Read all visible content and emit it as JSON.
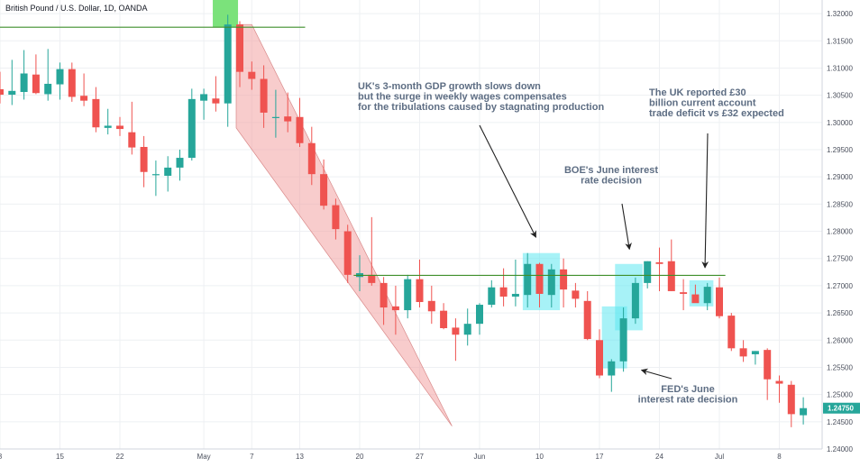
{
  "header": {
    "title": "British Pound / U.S. Dollar, 1D, OANDA"
  },
  "colors": {
    "up": "#26a69a",
    "down": "#ef5350",
    "grid": "#eef0f3",
    "support_line": "#3f8f2b",
    "channel_fill": "#f2a3a3",
    "highlight": "#5ee7f0",
    "top_marker": "#7be27b",
    "arrow": "#222222",
    "annotation_text": "#5d6d83",
    "price_label_bg": "#26a69a"
  },
  "chart_data": {
    "type": "candlestick",
    "title": "British Pound / U.S. Dollar, 1D, OANDA",
    "ylim": [
      1.24,
      1.3225
    ],
    "grid": true,
    "y_ticks": [
      "1.32000",
      "1.31500",
      "1.31000",
      "1.30500",
      "1.30000",
      "1.29500",
      "1.29000",
      "1.28500",
      "1.28000",
      "1.27500",
      "1.27000",
      "1.26500",
      "1.26000",
      "1.25500",
      "1.25000",
      "1.24500",
      "1.24000"
    ],
    "x_ticks": [
      {
        "label": "8",
        "index": 0
      },
      {
        "label": "15",
        "index": 5
      },
      {
        "label": "22",
        "index": 10
      },
      {
        "label": "May",
        "index": 17
      },
      {
        "label": "7",
        "index": 21
      },
      {
        "label": "13",
        "index": 25
      },
      {
        "label": "20",
        "index": 30
      },
      {
        "label": "27",
        "index": 35
      },
      {
        "label": "Jun",
        "index": 40
      },
      {
        "label": "10",
        "index": 45
      },
      {
        "label": "17",
        "index": 50
      },
      {
        "label": "24",
        "index": 55
      },
      {
        "label": "Jul",
        "index": 60
      },
      {
        "label": "8",
        "index": 65
      }
    ],
    "candles": [
      {
        "o": 1.3061,
        "h": 1.3093,
        "l": 1.3035,
        "c": 1.3051
      },
      {
        "o": 1.3051,
        "h": 1.3115,
        "l": 1.3032,
        "c": 1.3058
      },
      {
        "o": 1.3056,
        "h": 1.3133,
        "l": 1.3042,
        "c": 1.309
      },
      {
        "o": 1.3088,
        "h": 1.3125,
        "l": 1.3052,
        "c": 1.3054
      },
      {
        "o": 1.3052,
        "h": 1.3135,
        "l": 1.304,
        "c": 1.3071
      },
      {
        "o": 1.307,
        "h": 1.311,
        "l": 1.3042,
        "c": 1.3098
      },
      {
        "o": 1.3098,
        "h": 1.311,
        "l": 1.3038,
        "c": 1.3047
      },
      {
        "o": 1.3049,
        "h": 1.309,
        "l": 1.303,
        "c": 1.304
      },
      {
        "o": 1.3043,
        "h": 1.3065,
        "l": 1.2982,
        "c": 1.2991
      },
      {
        "o": 1.299,
        "h": 1.3025,
        "l": 1.2978,
        "c": 1.2994
      },
      {
        "o": 1.2994,
        "h": 1.301,
        "l": 1.2975,
        "c": 1.2988
      },
      {
        "o": 1.2982,
        "h": 1.3038,
        "l": 1.2941,
        "c": 1.2954
      },
      {
        "o": 1.2955,
        "h": 1.2975,
        "l": 1.2881,
        "c": 1.2909
      },
      {
        "o": 1.2905,
        "h": 1.293,
        "l": 1.2865,
        "c": 1.2905
      },
      {
        "o": 1.2902,
        "h": 1.2938,
        "l": 1.2873,
        "c": 1.2917
      },
      {
        "o": 1.2917,
        "h": 1.295,
        "l": 1.2893,
        "c": 1.2935
      },
      {
        "o": 1.2935,
        "h": 1.3062,
        "l": 1.293,
        "c": 1.3043
      },
      {
        "o": 1.304,
        "h": 1.3062,
        "l": 1.3005,
        "c": 1.3052
      },
      {
        "o": 1.3044,
        "h": 1.3085,
        "l": 1.302,
        "c": 1.3035
      },
      {
        "o": 1.3035,
        "h": 1.3198,
        "l": 1.2992,
        "c": 1.318
      },
      {
        "o": 1.318,
        "h": 1.3186,
        "l": 1.3065,
        "c": 1.3093
      },
      {
        "o": 1.3093,
        "h": 1.3112,
        "l": 1.306,
        "c": 1.308
      },
      {
        "o": 1.308,
        "h": 1.3105,
        "l": 1.299,
        "c": 1.3018
      },
      {
        "o": 1.301,
        "h": 1.306,
        "l": 1.2972,
        "c": 1.301
      },
      {
        "o": 1.3011,
        "h": 1.3055,
        "l": 1.2982,
        "c": 1.3002
      },
      {
        "o": 1.301,
        "h": 1.3045,
        "l": 1.2955,
        "c": 1.2962
      },
      {
        "o": 1.2962,
        "h": 1.2992,
        "l": 1.2885,
        "c": 1.2905
      },
      {
        "o": 1.2905,
        "h": 1.2932,
        "l": 1.284,
        "c": 1.2847
      },
      {
        "o": 1.2848,
        "h": 1.286,
        "l": 1.2785,
        "c": 1.2804
      },
      {
        "o": 1.28,
        "h": 1.2812,
        "l": 1.2705,
        "c": 1.272
      },
      {
        "o": 1.2716,
        "h": 1.2756,
        "l": 1.269,
        "c": 1.2723
      },
      {
        "o": 1.272,
        "h": 1.2826,
        "l": 1.27,
        "c": 1.2705
      },
      {
        "o": 1.2705,
        "h": 1.2716,
        "l": 1.2628,
        "c": 1.266
      },
      {
        "o": 1.2662,
        "h": 1.27,
        "l": 1.261,
        "c": 1.2655
      },
      {
        "o": 1.2655,
        "h": 1.272,
        "l": 1.264,
        "c": 1.2712
      },
      {
        "o": 1.2712,
        "h": 1.2748,
        "l": 1.266,
        "c": 1.267
      },
      {
        "o": 1.2672,
        "h": 1.27,
        "l": 1.263,
        "c": 1.2653
      },
      {
        "o": 1.2654,
        "h": 1.2668,
        "l": 1.262,
        "c": 1.2622
      },
      {
        "o": 1.2623,
        "h": 1.264,
        "l": 1.2562,
        "c": 1.261
      },
      {
        "o": 1.261,
        "h": 1.2658,
        "l": 1.259,
        "c": 1.263
      },
      {
        "o": 1.263,
        "h": 1.2668,
        "l": 1.261,
        "c": 1.2665
      },
      {
        "o": 1.2665,
        "h": 1.271,
        "l": 1.266,
        "c": 1.2697
      },
      {
        "o": 1.2697,
        "h": 1.2732,
        "l": 1.2662,
        "c": 1.268
      },
      {
        "o": 1.268,
        "h": 1.2748,
        "l": 1.2662,
        "c": 1.2685
      },
      {
        "o": 1.2683,
        "h": 1.276,
        "l": 1.266,
        "c": 1.274
      },
      {
        "o": 1.274,
        "h": 1.2742,
        "l": 1.266,
        "c": 1.2685
      },
      {
        "o": 1.2683,
        "h": 1.274,
        "l": 1.266,
        "c": 1.273
      },
      {
        "o": 1.273,
        "h": 1.275,
        "l": 1.266,
        "c": 1.2693
      },
      {
        "o": 1.2691,
        "h": 1.2705,
        "l": 1.266,
        "c": 1.2676
      },
      {
        "o": 1.2672,
        "h": 1.269,
        "l": 1.26,
        "c": 1.2602
      },
      {
        "o": 1.26,
        "h": 1.262,
        "l": 1.253,
        "c": 1.2535
      },
      {
        "o": 1.2535,
        "h": 1.2565,
        "l": 1.2505,
        "c": 1.2561
      },
      {
        "o": 1.2561,
        "h": 1.266,
        "l": 1.2542,
        "c": 1.264
      },
      {
        "o": 1.264,
        "h": 1.2715,
        "l": 1.263,
        "c": 1.2705
      },
      {
        "o": 1.2705,
        "h": 1.2745,
        "l": 1.2695,
        "c": 1.2745
      },
      {
        "o": 1.2743,
        "h": 1.277,
        "l": 1.269,
        "c": 1.274
      },
      {
        "o": 1.2745,
        "h": 1.2785,
        "l": 1.269,
        "c": 1.269
      },
      {
        "o": 1.2688,
        "h": 1.2712,
        "l": 1.2655,
        "c": 1.2685
      },
      {
        "o": 1.2684,
        "h": 1.2702,
        "l": 1.267,
        "c": 1.2668
      },
      {
        "o": 1.2668,
        "h": 1.2705,
        "l": 1.2655,
        "c": 1.2698
      },
      {
        "o": 1.2697,
        "h": 1.2715,
        "l": 1.264,
        "c": 1.2644
      },
      {
        "o": 1.2645,
        "h": 1.265,
        "l": 1.258,
        "c": 1.2585
      },
      {
        "o": 1.2585,
        "h": 1.26,
        "l": 1.256,
        "c": 1.257
      },
      {
        "o": 1.2574,
        "h": 1.258,
        "l": 1.2555,
        "c": 1.258
      },
      {
        "o": 1.2582,
        "h": 1.2585,
        "l": 1.249,
        "c": 1.2528
      },
      {
        "o": 1.2525,
        "h": 1.2535,
        "l": 1.2485,
        "c": 1.252
      },
      {
        "o": 1.2518,
        "h": 1.2525,
        "l": 1.244,
        "c": 1.2464
      },
      {
        "o": 1.2462,
        "h": 1.2495,
        "l": 1.2445,
        "c": 1.2475
      }
    ],
    "last_price": "1.24750",
    "lines": {
      "top_resistance": {
        "y": 1.3175,
        "from_index": -2,
        "to_index": 25
      },
      "support": {
        "y": 1.2719,
        "from_index": 29.5,
        "to_index": 60.5
      }
    },
    "channel": {
      "top_left": [
        19.7,
        1.318
      ],
      "top_right": [
        21.0,
        1.318
      ],
      "bottom_right": [
        37.7,
        1.2442
      ],
      "bottom_left": [
        19.7,
        1.299
      ]
    },
    "highlight_boxes": [
      {
        "from_index": 43.6,
        "to_index": 46.7,
        "y_high": 1.276,
        "y_low": 1.2655
      },
      {
        "from_index": 50.2,
        "to_index": 52.3,
        "y_high": 1.2662,
        "y_low": 1.2548
      },
      {
        "from_index": 51.3,
        "to_index": 53.6,
        "y_high": 1.274,
        "y_low": 1.2618
      },
      {
        "from_index": 57.5,
        "to_index": 59.5,
        "y_high": 1.271,
        "y_low": 1.2662
      }
    ],
    "top_marker": {
      "index": 18.8,
      "y_high": 1.3225,
      "y_low": 1.3175
    },
    "annotations": [
      {
        "lines": [
          "UK's 3-month GDP growth slows down",
          "but the surge in weekly wages compensates",
          "for the tribulations caused by stagnating production"
        ],
        "arrow_to": [
          44.7,
          1.2789
        ]
      },
      {
        "lines": [
          "The UK reported £30",
          "billion current account",
          "trade deficit vs £32 expected"
        ],
        "arrow_to": [
          58.8,
          1.2733
        ]
      },
      {
        "lines": [
          "BOE's June interest",
          "rate decision"
        ],
        "arrow_to": [
          52.5,
          1.2767
        ]
      },
      {
        "lines": [
          "FED's June",
          "interest rate decision"
        ],
        "arrow_to": [
          53.5,
          1.2545
        ]
      }
    ]
  }
}
